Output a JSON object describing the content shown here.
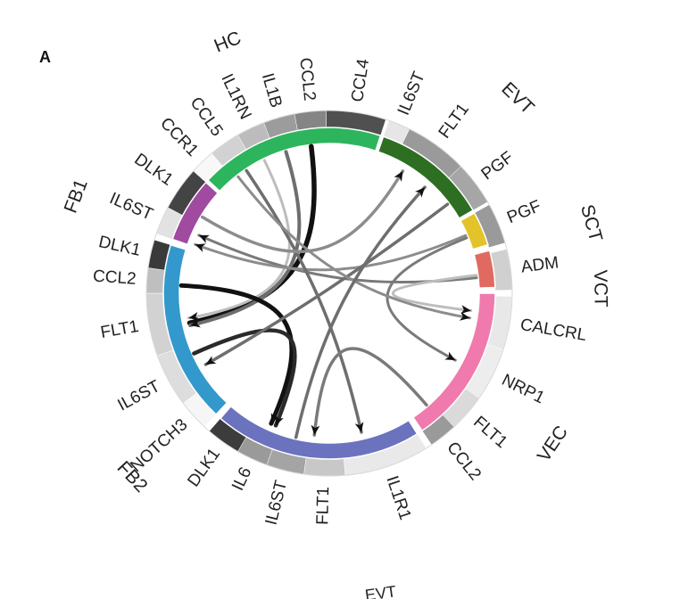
{
  "figure": {
    "panel_label": "A",
    "cropped_label_fragment": "EVT"
  },
  "groups": [
    {
      "id": "HC",
      "label": "HC",
      "color": "#2db55d",
      "angle": 0,
      "label_angle": -22
    },
    {
      "id": "EVT",
      "label": "EVT",
      "color": "#2e6e23",
      "angle": 0,
      "label_angle": 44
    },
    {
      "id": "SCT",
      "label": "SCT",
      "color": "#e3c32a",
      "angle": 0,
      "label_angle": 75
    },
    {
      "id": "VCT",
      "label": "VCT",
      "color": "#e06a5f",
      "angle": 0,
      "label_angle": 89
    },
    {
      "id": "VEC",
      "label": "VEC",
      "color": "#f07aad",
      "angle": 0,
      "label_angle": 124
    },
    {
      "id": "FB2",
      "label": "FB2",
      "color": "#6b73bf",
      "angle": 0,
      "label_angle": 227
    },
    {
      "id": "FB1",
      "label": "FB1",
      "color": "#3399cc",
      "angle": 0,
      "label_angle": 291
    }
  ],
  "genes": [
    {
      "label": "IL6ST",
      "color": "#e6e6e6"
    },
    {
      "label": "FLT1",
      "color": "#9a9a9a"
    },
    {
      "label": "PGF",
      "color": "#a6a6a6"
    },
    {
      "label": "PGF",
      "color": "#9a9a9a"
    },
    {
      "label": "ADM",
      "color": "#d0d0d0"
    },
    {
      "label": "CALCRL",
      "color": "#e8e8e8"
    },
    {
      "label": "NRP1",
      "color": "#ededed"
    },
    {
      "label": "FLT1",
      "color": "#dadada"
    },
    {
      "label": "CCL2",
      "color": "#9a9a9a"
    },
    {
      "label": "IL1R1",
      "color": "#e9e9e9"
    },
    {
      "label": "FLT1",
      "color": "#c8c8c8"
    },
    {
      "label": "IL6ST",
      "color": "#a4a4a4"
    },
    {
      "label": "IL6",
      "color": "#9a9a9a"
    },
    {
      "label": "DLK1",
      "color": "#3c3c3c"
    },
    {
      "label": "NOTCH3",
      "color": "#f6f6f6"
    },
    {
      "label": "IL6ST",
      "color": "#dddddd"
    },
    {
      "label": "FLT1",
      "color": "#d2d2d2"
    },
    {
      "label": "CCL2",
      "color": "#bfbfbf"
    },
    {
      "label": "DLK1",
      "color": "#3a3a3a"
    },
    {
      "label": "IL6ST",
      "color": "#e2e2e2"
    },
    {
      "label": "DLK1",
      "color": "#444444"
    },
    {
      "label": "CCR1",
      "color": "#f8f8f8"
    },
    {
      "label": "CCL5",
      "color": "#d2d2d2"
    },
    {
      "label": "IL1RN",
      "color": "#bcbcbc"
    },
    {
      "label": "IL1B",
      "color": "#9c9c9c"
    },
    {
      "label": "CCL2",
      "color": "#858585"
    },
    {
      "label": "CCL4",
      "color": "#505050"
    }
  ],
  "links": [
    {
      "from": "HC CCL4",
      "to": "FB1 DLK1",
      "color": "#111111"
    },
    {
      "from": "HC CCL2",
      "to": "FB1 DLK1",
      "color": "#6e6e6e"
    },
    {
      "from": "HC IL1RN",
      "to": "FB1 DLK1",
      "color": "#bdbdbd"
    },
    {
      "from": "VCT ADM",
      "to": "FB1 IL6ST",
      "color": "#7a7a7a"
    },
    {
      "from": "SCT PGF",
      "to": "FB1 IL6ST",
      "color": "#8c8c8c"
    },
    {
      "from": "FB1 DLK1",
      "to": "FB2 NOTCH3",
      "color": "#111111"
    },
    {
      "from": "FB1 CCL2",
      "to": "FB1 NOTCH3",
      "color": "#2a2a2a"
    },
    {
      "from": "EVT PGF",
      "to": "FB1 CCL2",
      "color": "#6e6e6e"
    },
    {
      "from": "VCT ADM",
      "to": "VEC CALCRL",
      "color": "#bdbdbd"
    },
    {
      "from": "SCT PGF",
      "to": "VEC NRP1",
      "color": "#7a7a7a"
    },
    {
      "from": "HC IL1B",
      "to": "FB2 IL6ST",
      "color": "#6e6e6e"
    },
    {
      "from": "HC CCL5",
      "to": "VEC CALCRL",
      "color": "#8c8c8c"
    },
    {
      "from": "VEC CCL2",
      "to": "FB2 IL1R1",
      "color": "#7a7a7a"
    },
    {
      "from": "FB2 IL6",
      "to": "EVT FLT1",
      "color": "#6e6e6e"
    },
    {
      "from": "FB1 IL6ST",
      "to": "EVT IL6ST",
      "color": "#8c8c8c"
    }
  ]
}
